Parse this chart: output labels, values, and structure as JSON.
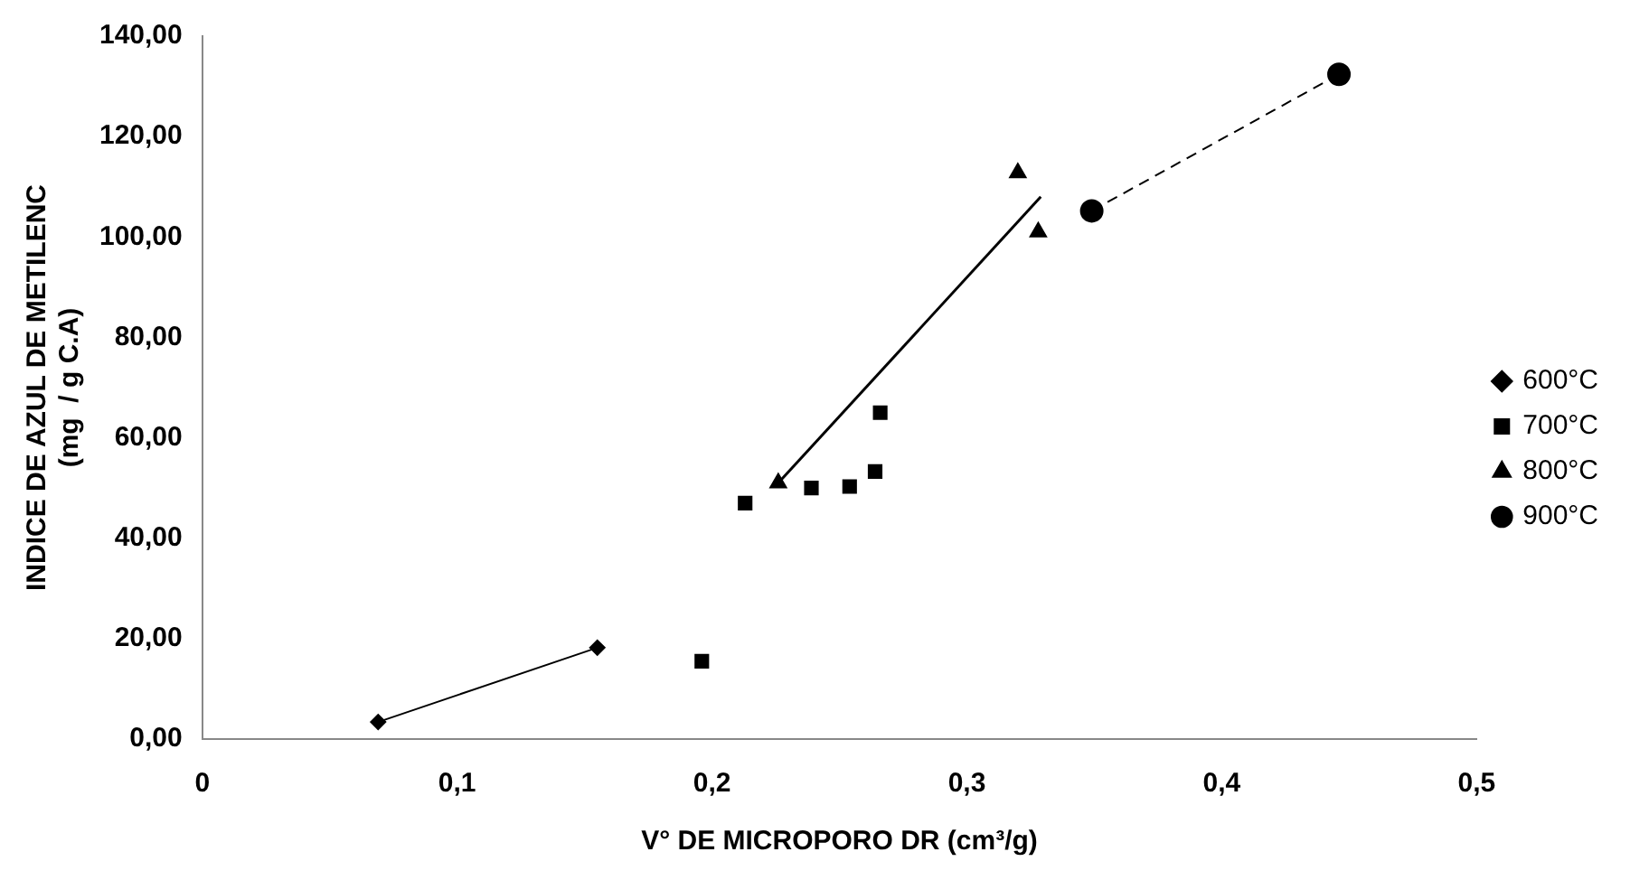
{
  "chart_data": {
    "type": "scatter",
    "xlabel": "V° DE MICROPORO DR (cm³/g)",
    "ylabel": [
      "INDICE DE AZUL DE METILENC",
      "(mg  / g C.A)"
    ],
    "xlim": [
      0,
      0.5
    ],
    "xticks": [
      0,
      {
        "value": 0.1,
        "label": "0,1"
      },
      {
        "value": 0.2,
        "label": "0,2"
      },
      {
        "value": 0.3,
        "label": "0,3"
      },
      {
        "value": 0.4,
        "label": "0,4"
      },
      {
        "value": 0.5,
        "label": "0,5"
      }
    ],
    "ylim": [
      0,
      140
    ],
    "yticks": [
      {
        "value": 0,
        "label": "0,00"
      },
      {
        "value": 20,
        "label": "20,00"
      },
      {
        "value": 40,
        "label": "40,00"
      },
      {
        "value": 60,
        "label": "60,00"
      },
      {
        "value": 80,
        "label": "80,00"
      },
      {
        "value": 100,
        "label": "100,00"
      },
      {
        "value": 120,
        "label": "120,00"
      },
      {
        "value": 140,
        "label": "140,00"
      }
    ],
    "grid": false,
    "legend": "right",
    "series": [
      {
        "name": "600°C",
        "type": "line",
        "marker": "diamond",
        "color": "#000000",
        "x": [
          0.069,
          0.155
        ],
        "values": [
          3.4,
          18.2
        ]
      },
      {
        "name": "700°C",
        "type": "scatter",
        "marker": "square",
        "color": "#000000",
        "x": [
          0.196,
          0.213,
          0.239,
          0.254,
          0.264,
          0.266
        ],
        "values": [
          15.5,
          47,
          50,
          50.3,
          53.3,
          65
        ]
      },
      {
        "name": "800°C",
        "type": "scatter",
        "marker": "triangle",
        "color": "#000000",
        "x": [
          0.226,
          0.32,
          0.328
        ],
        "values": [
          51,
          112.8,
          101
        ]
      },
      {
        "name": "900°C",
        "type": "line",
        "marker": "circle",
        "line_style": "dashed",
        "color": "#000000",
        "x": [
          0.349,
          0.446
        ],
        "values": [
          105.2,
          132.4
        ]
      },
      {
        "type": "line",
        "marker": "none",
        "color": "#000000",
        "x": [
          0.226,
          0.329
        ],
        "values": [
          51,
          108
        ]
      }
    ]
  }
}
